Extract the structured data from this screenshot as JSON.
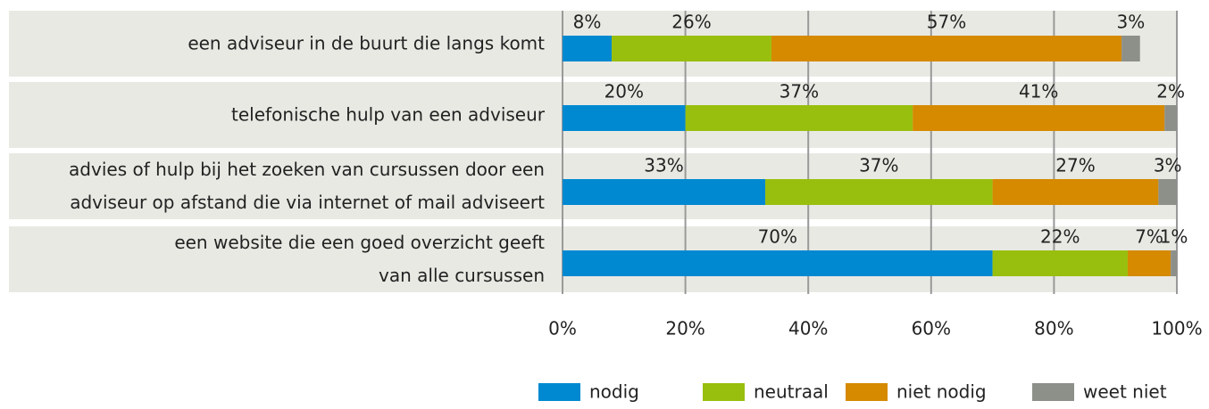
{
  "chart_data": {
    "type": "stacked_barh",
    "categories": [
      "een adviseur in de buurt die langs komt",
      "telefonische hulp van een adviseur",
      "advies of hulp bij het zoeken van cursussen door een\nadviseur op afstand die via internet of mail adviseert",
      "een website die een goed overzicht geeft\nvan alle cursussen"
    ],
    "series": [
      {
        "name": "nodig",
        "color": "#0089d0",
        "values": [
          8,
          20,
          33,
          70
        ],
        "value_labels": [
          "8%",
          "20%",
          "33%",
          "70%"
        ]
      },
      {
        "name": "neutraal",
        "color": "#98bf0d",
        "values": [
          26,
          37,
          37,
          22
        ],
        "value_labels": [
          "26%",
          "37%",
          "37%",
          "22%"
        ]
      },
      {
        "name": "niet nodig",
        "color": "#d58a00",
        "values": [
          57,
          41,
          27,
          7
        ],
        "value_labels": [
          "57%",
          "41%",
          "27%",
          "7%"
        ]
      },
      {
        "name": "weet niet",
        "color": "#8d9089",
        "values": [
          3,
          2,
          3,
          1
        ],
        "value_labels": [
          "3%",
          "2%",
          "3%",
          "1%"
        ]
      }
    ],
    "xlim": [
      0,
      100
    ],
    "xticks": [
      {
        "value": 0,
        "label": "0%"
      },
      {
        "value": 20,
        "label": "20%"
      },
      {
        "value": 40,
        "label": "40%"
      },
      {
        "value": 60,
        "label": "60%"
      },
      {
        "value": 80,
        "label": "80%"
      },
      {
        "value": 100,
        "label": "100%"
      }
    ],
    "grid": true,
    "legend": "bottom"
  }
}
